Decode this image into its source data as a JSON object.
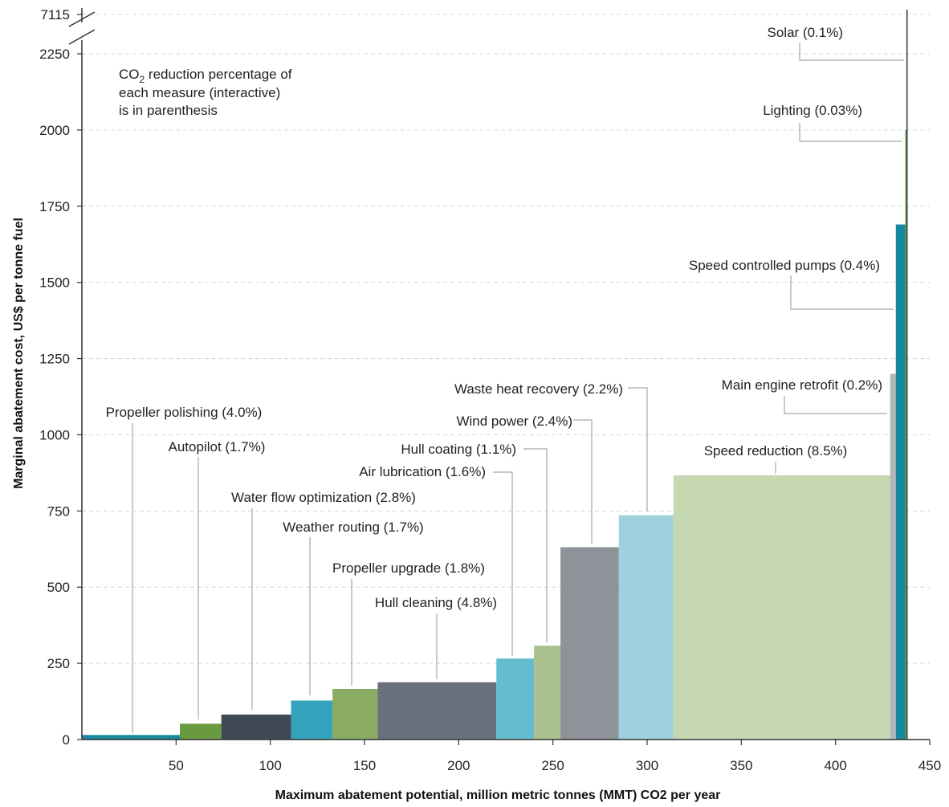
{
  "chart_data": {
    "type": "bar",
    "subtype": "marginal-abatement-cost-curve",
    "xlabel": "Maximum abatement potential, million metric tonnes (MMT) CO2 per year",
    "ylabel": "Marginal abatement cost, US$ per tonne fuel",
    "xlim": [
      0,
      450
    ],
    "ylim": [
      0,
      2250
    ],
    "y_break_top_label": "7115",
    "x_ticks": [
      50,
      100,
      150,
      200,
      250,
      300,
      350,
      400,
      450
    ],
    "y_ticks": [
      0,
      250,
      500,
      750,
      1000,
      1250,
      1500,
      1750,
      2000,
      2250
    ],
    "grid": "horizontal-dashed",
    "note_line1_pre": "CO",
    "note_line1_sub": "2",
    "note_line1_post": " reduction percentage of",
    "note_line2": "each measure (interactive)",
    "note_line3": "is in parenthesis",
    "series": [
      {
        "label": "Propeller polishing (4.0%)",
        "x0": 0,
        "x1": 52,
        "value": 15,
        "color": "#16899e"
      },
      {
        "label": "Autopilot (1.7%)",
        "x0": 52,
        "x1": 74,
        "value": 52,
        "color": "#6a9a3f"
      },
      {
        "label": "Water flow optimization (2.8%)",
        "x0": 74,
        "x1": 111,
        "value": 82,
        "color": "#3f4a55"
      },
      {
        "label": "Weather routing (1.7%)",
        "x0": 111,
        "x1": 133,
        "value": 128,
        "color": "#34a3bb"
      },
      {
        "label": "Propeller upgrade (1.8%)",
        "x0": 133,
        "x1": 157,
        "value": 166,
        "color": "#8aab62"
      },
      {
        "label": "Hull cleaning (4.8%)",
        "x0": 157,
        "x1": 220,
        "value": 188,
        "color": "#6a717c"
      },
      {
        "label": "Air lubrication (1.6%)",
        "x0": 220,
        "x1": 240,
        "value": 266,
        "color": "#66bccf"
      },
      {
        "label": "Hull coating (1.1%)",
        "x0": 240,
        "x1": 254,
        "value": 308,
        "color": "#a8c18e"
      },
      {
        "label": "Wind power (2.4%)",
        "x0": 254,
        "x1": 285,
        "value": 631,
        "color": "#8d9399"
      },
      {
        "label": "Waste heat recovery (2.2%)",
        "x0": 285,
        "x1": 314,
        "value": 736,
        "color": "#9dd1dd"
      },
      {
        "label": "Speed reduction (8.5%)",
        "x0": 314,
        "x1": 429,
        "value": 867,
        "color": "#c6d8b2"
      },
      {
        "label": "Main engine retrofit (0.2%)",
        "x0": 429,
        "x1": 432,
        "value": 1200,
        "color": "#b3b6b9"
      },
      {
        "label": "Speed controlled pumps (0.4%)",
        "x0": 432,
        "x1": 437,
        "value": 1690,
        "color": "#16899e"
      },
      {
        "label": "Lighting (0.03%)",
        "x0": 437,
        "x1": 437.6,
        "value": 2000,
        "color": "#6a9a3f"
      },
      {
        "label": "Solar (0.1%)",
        "x0": 437.6,
        "x1": 438.3,
        "value": 7115,
        "color": "#3f4a55"
      }
    ]
  }
}
